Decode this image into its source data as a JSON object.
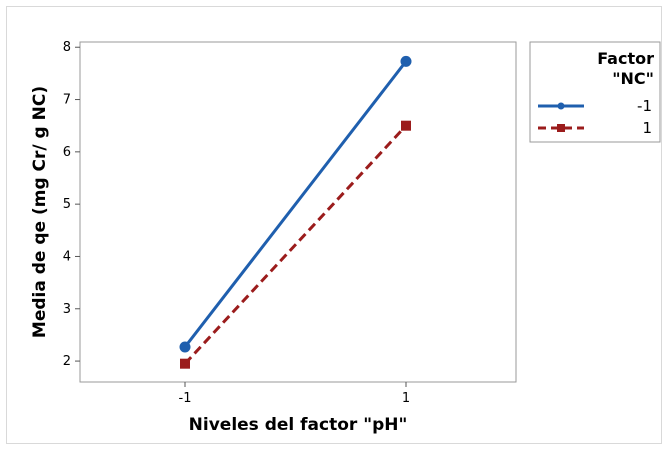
{
  "chart_data": {
    "type": "line",
    "xlabel": "Niveles del factor \"pH\"",
    "ylabel": "Media de qe (mg Cr/ g NC)",
    "x": [
      "-1",
      "1"
    ],
    "ylim": [
      1.6,
      8.1
    ],
    "yticks": [
      "2",
      "3",
      "4",
      "5",
      "6",
      "7",
      "8"
    ],
    "grid": false,
    "legend": {
      "title_line1": "Factor",
      "title_line2": "\"NC\"",
      "placement": "right"
    },
    "series": [
      {
        "name": "-1",
        "values": [
          2.27,
          7.73
        ],
        "color": "#1f5fae",
        "line_style": "solid",
        "marker": "circle"
      },
      {
        "name": "1",
        "values": [
          1.95,
          6.5
        ],
        "color": "#9b1c1c",
        "line_style": "dashed",
        "marker": "square"
      }
    ]
  }
}
